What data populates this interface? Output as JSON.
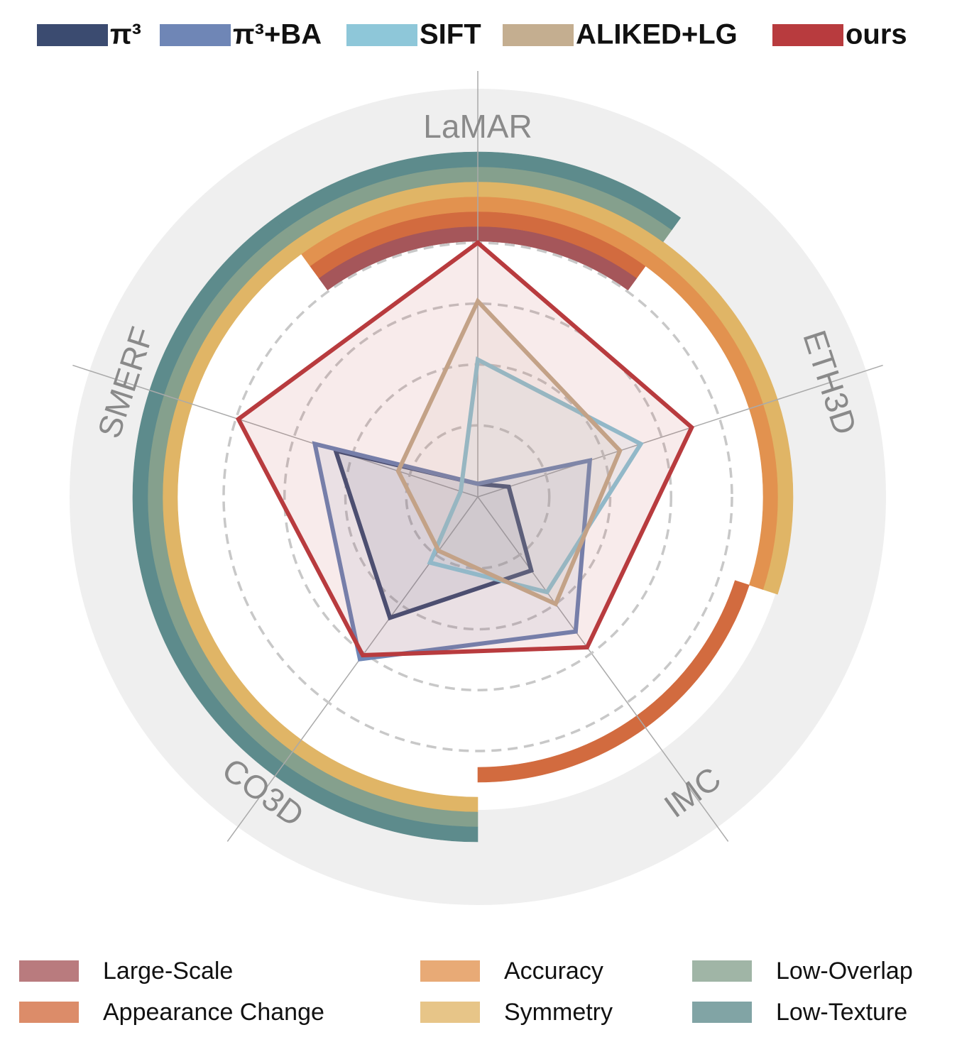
{
  "chart_data": {
    "type": "radar",
    "categories": [
      "LaMAR",
      "ETH3D",
      "IMC",
      "CO3D",
      "SMERF"
    ],
    "rlim": [
      0,
      1
    ],
    "rticks": [
      0.25,
      0.5,
      0.75,
      1
    ],
    "grid": true,
    "series": [
      {
        "name": "π³",
        "color": "#3b4b70",
        "values": [
          0.01,
          0.09,
          0.33,
          0.57,
          0.57
        ]
      },
      {
        "name": "π³+BA",
        "color": "#6f86b6",
        "values": [
          0.01,
          0.44,
          0.64,
          0.78,
          0.66
        ]
      },
      {
        "name": "SIFT",
        "color": "#8ec7d9",
        "values": [
          0.52,
          0.66,
          0.44,
          0.29,
          0.03
        ]
      },
      {
        "name": "ALIKED+LG",
        "color": "#c4ae90",
        "values": [
          0.76,
          0.57,
          0.5,
          0.23,
          0.3
        ]
      },
      {
        "name": "ours",
        "color": "#b83b3e",
        "values": [
          1.0,
          0.88,
          0.72,
          0.76,
          0.99
        ]
      }
    ],
    "attributes": [
      {
        "name": "Large-Scale",
        "color": "#a5565a",
        "categories": [
          0
        ]
      },
      {
        "name": "Appearance Change",
        "color": "#d26b3f",
        "categories": [
          0,
          2
        ]
      },
      {
        "name": "Accuracy",
        "color": "#e2924f",
        "categories": [
          0,
          1
        ]
      },
      {
        "name": "Symmetry",
        "color": "#e0b566",
        "categories": [
          0,
          1,
          3,
          4
        ]
      },
      {
        "name": "Low-Overlap",
        "color": "#85a08d",
        "categories": [
          0,
          3,
          4
        ]
      },
      {
        "name": "Low-Texture",
        "color": "#5d8b8c",
        "categories": [
          0,
          3,
          4
        ]
      }
    ]
  }
}
